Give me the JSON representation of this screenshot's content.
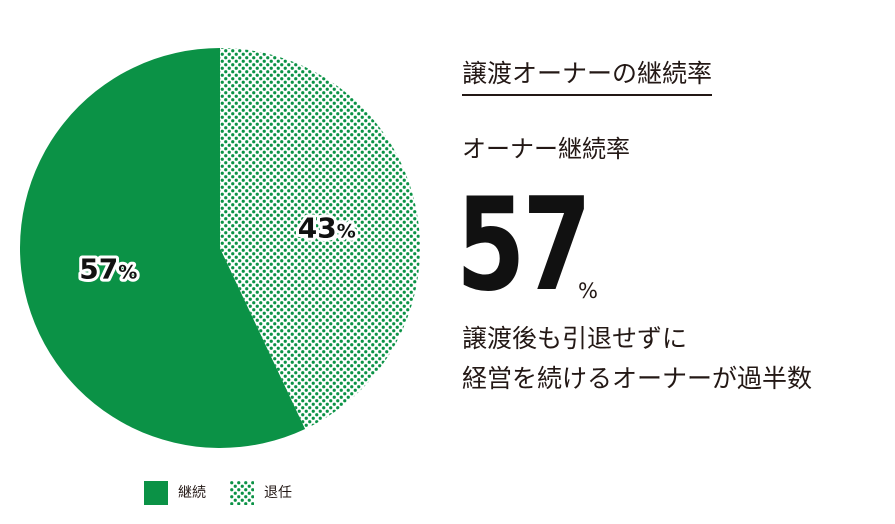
{
  "chart_data": {
    "type": "pie",
    "categories": [
      "継続",
      "退任"
    ],
    "values": [
      57,
      43
    ],
    "value_labels": [
      "57",
      "43"
    ],
    "value_unit": "%",
    "start_angle_degrees": 0,
    "direction": "counterclockwise",
    "colors": [
      "#0b9246",
      "#0b9246"
    ],
    "fills": [
      "solid",
      "dotted"
    ],
    "legend": "bottom-left"
  },
  "panel": {
    "title": "譲渡オーナーの継続率",
    "stat_label": "オーナー継続率",
    "stat_value": "57",
    "stat_unit": "%",
    "description_lines": [
      "譲渡後も引退せずに",
      "経営を続けるオーナーが過半数"
    ]
  },
  "legend": {
    "items": [
      {
        "label": "継続",
        "fill": "solid"
      },
      {
        "label": "退任",
        "fill": "dotted"
      }
    ]
  },
  "colors": {
    "accent": "#0b9246",
    "text": "#231815"
  }
}
